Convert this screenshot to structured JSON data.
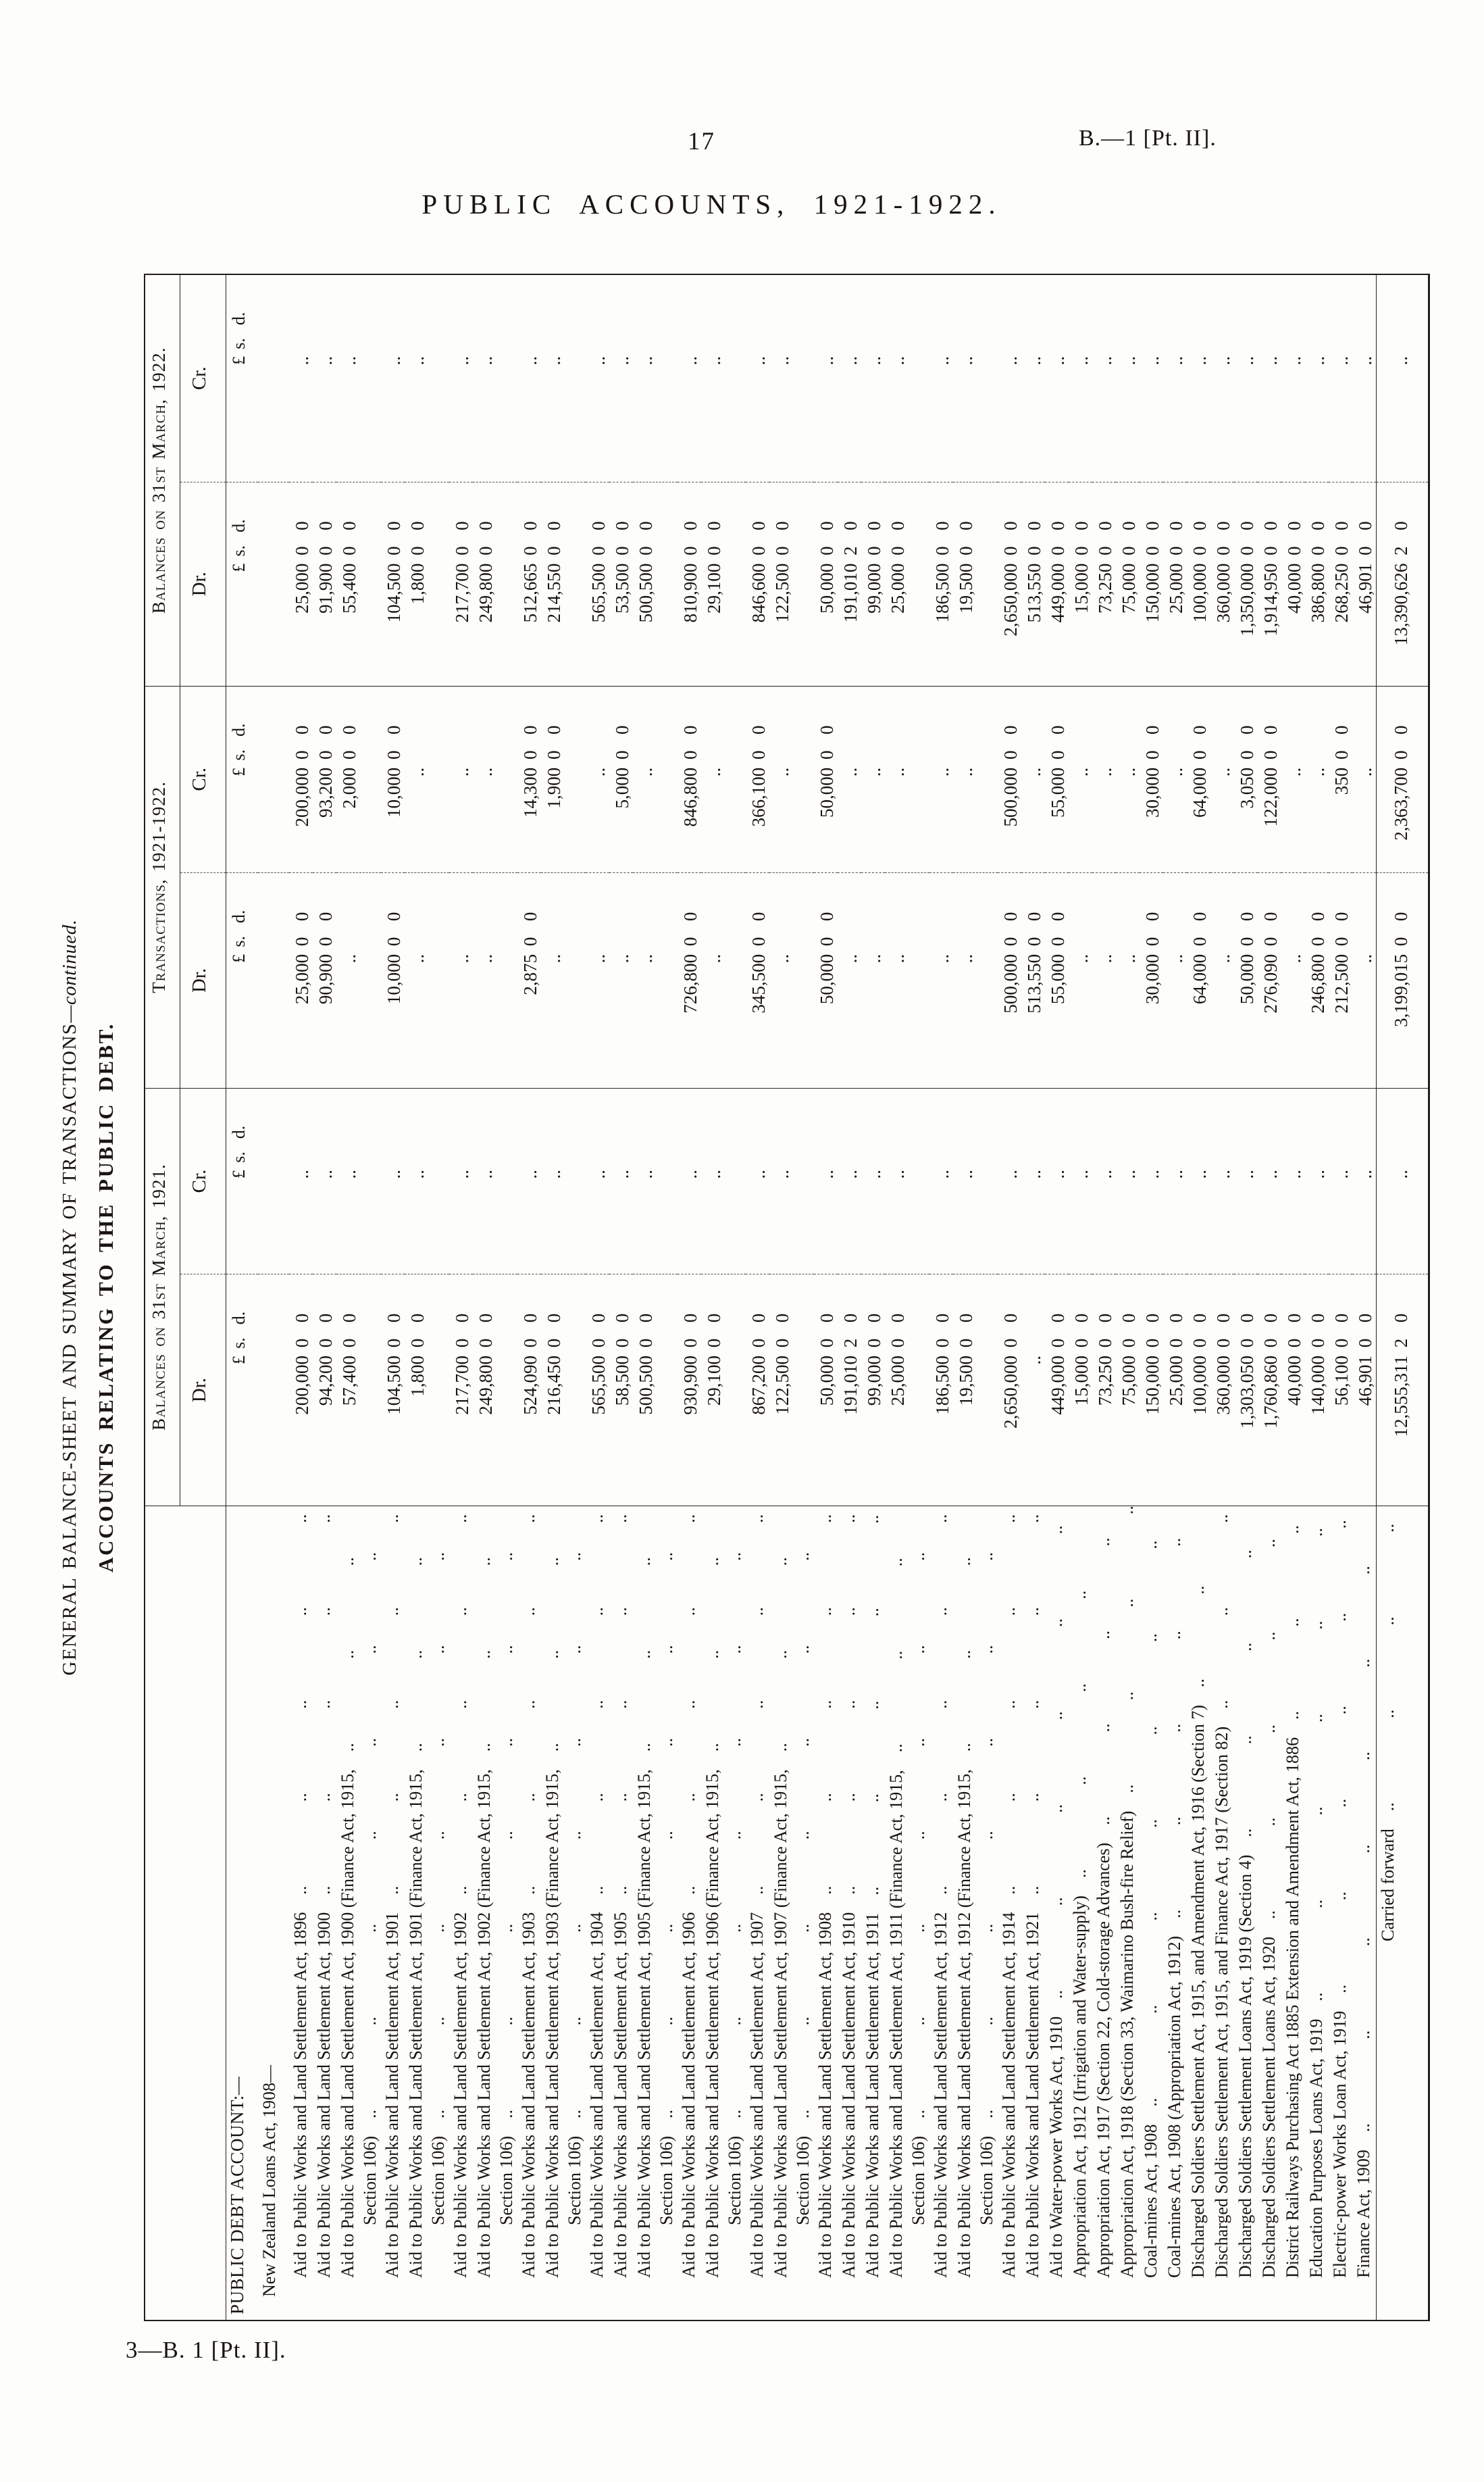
{
  "page": {
    "number": "17",
    "doc_ref": "B.—1 [Pt. II].",
    "title": "PUBLIC ACCOUNTS, 1921-1922.",
    "footer": "3—B. 1 [Pt. II]."
  },
  "table": {
    "caption1_main": "GENERAL BALANCE-SHEET AND SUMMARY OF TRANSACTIONS",
    "caption1_cont": "—continued.",
    "caption2": "ACCOUNTS RELATING TO THE PUBLIC DEBT.",
    "groups": [
      {
        "label": "Balances on 31st March, 1921."
      },
      {
        "label": "Transactions, 1921-1922."
      },
      {
        "label": "Balances on 31st March, 1922."
      }
    ],
    "dr_label": "Dr.",
    "cr_label": "Cr.",
    "pound_sign": "£",
    "s_label": "s.",
    "d_label": "d.",
    "empty_marker": "..",
    "section_heading": "PUBLIC DEBT ACCOUNT:—",
    "subsection_heading": "New Zealand Loans Act, 1908—",
    "rows": [
      {
        "name": "Aid to Public Works and Land Settlement Act, 1896",
        "b21dr": [
          "200,000",
          "0",
          "0"
        ],
        "b21cr": null,
        "trdr": [
          "25,000",
          "0",
          "0"
        ],
        "trcr": [
          "200,000",
          "0",
          "0"
        ],
        "b22dr": [
          "25,000",
          "0",
          "0"
        ],
        "b22cr": null
      },
      {
        "name": "Aid to Public Works and Land Settlement Act, 1900",
        "b21dr": [
          "94,200",
          "0",
          "0"
        ],
        "b21cr": null,
        "trdr": [
          "90,900",
          "0",
          "0"
        ],
        "trcr": [
          "93,200",
          "0",
          "0"
        ],
        "b22dr": [
          "91,900",
          "0",
          "0"
        ],
        "b22cr": null
      },
      {
        "name": "Aid to Public Works and Land Settlement Act, 1900 (Finance Act, 1915,",
        "name2": "Section 106)",
        "b21dr": [
          "57,400",
          "0",
          "0"
        ],
        "b21cr": null,
        "trdr": null,
        "trcr": [
          "2,000",
          "0",
          "0"
        ],
        "b22dr": [
          "55,400",
          "0",
          "0"
        ],
        "b22cr": null
      },
      {
        "name": "Aid to Public Works and Land Settlement Act, 1901",
        "b21dr": [
          "104,500",
          "0",
          "0"
        ],
        "b21cr": null,
        "trdr": [
          "10,000",
          "0",
          "0"
        ],
        "trcr": [
          "10,000",
          "0",
          "0"
        ],
        "b22dr": [
          "104,500",
          "0",
          "0"
        ],
        "b22cr": null
      },
      {
        "name": "Aid to Public Works and Land Settlement Act, 1901 (Finance Act, 1915,",
        "name2": "Section 106)",
        "b21dr": [
          "1,800",
          "0",
          "0"
        ],
        "b21cr": null,
        "trdr": null,
        "trcr": null,
        "b22dr": [
          "1,800",
          "0",
          "0"
        ],
        "b22cr": null
      },
      {
        "name": "Aid to Public Works and Land Settlement Act, 1902",
        "b21dr": [
          "217,700",
          "0",
          "0"
        ],
        "b21cr": null,
        "trdr": null,
        "trcr": null,
        "b22dr": [
          "217,700",
          "0",
          "0"
        ],
        "b22cr": null
      },
      {
        "name": "Aid to Public Works and Land Settlement Act, 1902 (Finance Act, 1915,",
        "name2": "Section 106)",
        "b21dr": [
          "249,800",
          "0",
          "0"
        ],
        "b21cr": null,
        "trdr": null,
        "trcr": null,
        "b22dr": [
          "249,800",
          "0",
          "0"
        ],
        "b22cr": null
      },
      {
        "name": "Aid to Public Works and Land Settlement Act, 1903",
        "b21dr": [
          "524,090",
          "0",
          "0"
        ],
        "b21cr": null,
        "trdr": [
          "2,875",
          "0",
          "0"
        ],
        "trcr": [
          "14,300",
          "0",
          "0"
        ],
        "b22dr": [
          "512,665",
          "0",
          "0"
        ],
        "b22cr": null
      },
      {
        "name": "Aid to Public Works and Land Settlement Act, 1903 (Finance Act, 1915,",
        "name2": "Section 106)",
        "b21dr": [
          "216,450",
          "0",
          "0"
        ],
        "b21cr": null,
        "trdr": null,
        "trcr": [
          "1,900",
          "0",
          "0"
        ],
        "b22dr": [
          "214,550",
          "0",
          "0"
        ],
        "b22cr": null
      },
      {
        "name": "Aid to Public Works and Land Settlement Act, 1904",
        "b21dr": [
          "565,500",
          "0",
          "0"
        ],
        "b21cr": null,
        "trdr": null,
        "trcr": null,
        "b22dr": [
          "565,500",
          "0",
          "0"
        ],
        "b22cr": null
      },
      {
        "name": "Aid to Public Works and Land Settlement Act, 1905",
        "b21dr": [
          "58,500",
          "0",
          "0"
        ],
        "b21cr": null,
        "trdr": null,
        "trcr": [
          "5,000",
          "0",
          "0"
        ],
        "b22dr": [
          "53,500",
          "0",
          "0"
        ],
        "b22cr": null
      },
      {
        "name": "Aid to Public Works and Land Settlement Act, 1905 (Finance Act, 1915,",
        "name2": "Section 106)",
        "b21dr": [
          "500,500",
          "0",
          "0"
        ],
        "b21cr": null,
        "trdr": null,
        "trcr": null,
        "b22dr": [
          "500,500",
          "0",
          "0"
        ],
        "b22cr": null
      },
      {
        "name": "Aid to Public Works and Land Settlement Act, 1906",
        "b21dr": [
          "930,900",
          "0",
          "0"
        ],
        "b21cr": null,
        "trdr": [
          "726,800",
          "0",
          "0"
        ],
        "trcr": [
          "846,800",
          "0",
          "0"
        ],
        "b22dr": [
          "810,900",
          "0",
          "0"
        ],
        "b22cr": null
      },
      {
        "name": "Aid to Public Works and Land Settlement Act, 1906 (Finance Act, 1915,",
        "name2": "Section 106)",
        "b21dr": [
          "29,100",
          "0",
          "0"
        ],
        "b21cr": null,
        "trdr": null,
        "trcr": null,
        "b22dr": [
          "29,100",
          "0",
          "0"
        ],
        "b22cr": null
      },
      {
        "name": "Aid to Public Works and Land Settlement Act, 1907",
        "b21dr": [
          "867,200",
          "0",
          "0"
        ],
        "b21cr": null,
        "trdr": [
          "345,500",
          "0",
          "0"
        ],
        "trcr": [
          "366,100",
          "0",
          "0"
        ],
        "b22dr": [
          "846,600",
          "0",
          "0"
        ],
        "b22cr": null
      },
      {
        "name": "Aid to Public Works and Land Settlement Act, 1907 (Finance Act, 1915,",
        "name2": "Section 106)",
        "b21dr": [
          "122,500",
          "0",
          "0"
        ],
        "b21cr": null,
        "trdr": null,
        "trcr": null,
        "b22dr": [
          "122,500",
          "0",
          "0"
        ],
        "b22cr": null
      },
      {
        "name": "Aid to Public Works and Land Settlement Act, 1908",
        "b21dr": [
          "50,000",
          "0",
          "0"
        ],
        "b21cr": null,
        "trdr": [
          "50,000",
          "0",
          "0"
        ],
        "trcr": [
          "50,000",
          "0",
          "0"
        ],
        "b22dr": [
          "50,000",
          "0",
          "0"
        ],
        "b22cr": null
      },
      {
        "name": "Aid to Public Works and Land Settlement Act, 1910",
        "b21dr": [
          "191,010",
          "2",
          "0"
        ],
        "b21cr": null,
        "trdr": null,
        "trcr": null,
        "b22dr": [
          "191,010",
          "2",
          "0"
        ],
        "b22cr": null
      },
      {
        "name": "Aid to Public Works and Land Settlement Act, 1911",
        "b21dr": [
          "99,000",
          "0",
          "0"
        ],
        "b21cr": null,
        "trdr": null,
        "trcr": null,
        "b22dr": [
          "99,000",
          "0",
          "0"
        ],
        "b22cr": null
      },
      {
        "name": "Aid to Public Works and Land Settlement Act, 1911 (Finance Act, 1915,",
        "name2": "Section 106)",
        "b21dr": [
          "25,000",
          "0",
          "0"
        ],
        "b21cr": null,
        "trdr": null,
        "trcr": null,
        "b22dr": [
          "25,000",
          "0",
          "0"
        ],
        "b22cr": null
      },
      {
        "name": "Aid to Public Works and Land Settlement Act, 1912",
        "b21dr": [
          "186,500",
          "0",
          "0"
        ],
        "b21cr": null,
        "trdr": null,
        "trcr": null,
        "b22dr": [
          "186,500",
          "0",
          "0"
        ],
        "b22cr": null
      },
      {
        "name": "Aid to Public Works and Land Settlement Act, 1912 (Finance Act, 1915,",
        "name2": "Section 106)",
        "b21dr": [
          "19,500",
          "0",
          "0"
        ],
        "b21cr": null,
        "trdr": null,
        "trcr": null,
        "b22dr": [
          "19,500",
          "0",
          "0"
        ],
        "b22cr": null
      },
      {
        "name": "Aid to Public Works and Land Settlement Act, 1914",
        "b21dr": [
          "2,650,000",
          "0",
          "0"
        ],
        "b21cr": null,
        "trdr": [
          "500,000",
          "0",
          "0"
        ],
        "trcr": [
          "500,000",
          "0",
          "0"
        ],
        "b22dr": [
          "2,650,000",
          "0",
          "0"
        ],
        "b22cr": null
      },
      {
        "name": "Aid to Public Works and Land Settlement Act, 1921",
        "b21dr": null,
        "b21cr": null,
        "trdr": [
          "513,550",
          "0",
          "0"
        ],
        "trcr": null,
        "b22dr": [
          "513,550",
          "0",
          "0"
        ],
        "b22cr": null
      },
      {
        "name": "Aid to Water-power Works Act, 1910",
        "b21dr": [
          "449,000",
          "0",
          "0"
        ],
        "b21cr": null,
        "trdr": [
          "55,000",
          "0",
          "0"
        ],
        "trcr": [
          "55,000",
          "0",
          "0"
        ],
        "b22dr": [
          "449,000",
          "0",
          "0"
        ],
        "b22cr": null
      },
      {
        "name": "Appropriation Act, 1912 (Irrigation and Water-supply)",
        "b21dr": [
          "15,000",
          "0",
          "0"
        ],
        "b21cr": null,
        "trdr": null,
        "trcr": null,
        "b22dr": [
          "15,000",
          "0",
          "0"
        ],
        "b22cr": null
      },
      {
        "name": "Appropriation Act, 1917 (Section 22, Cold-storage Advances)",
        "b21dr": [
          "73,250",
          "0",
          "0"
        ],
        "b21cr": null,
        "trdr": null,
        "trcr": null,
        "b22dr": [
          "73,250",
          "0",
          "0"
        ],
        "b22cr": null
      },
      {
        "name": "Appropriation Act, 1918 (Section 33, Waimarino Bush-fire Relief)",
        "b21dr": [
          "75,000",
          "0",
          "0"
        ],
        "b21cr": null,
        "trdr": null,
        "trcr": null,
        "b22dr": [
          "75,000",
          "0",
          "0"
        ],
        "b22cr": null
      },
      {
        "name": "Coal-mines Act, 1908",
        "b21dr": [
          "150,000",
          "0",
          "0"
        ],
        "b21cr": null,
        "trdr": [
          "30,000",
          "0",
          "0"
        ],
        "trcr": [
          "30,000",
          "0",
          "0"
        ],
        "b22dr": [
          "150,000",
          "0",
          "0"
        ],
        "b22cr": null
      },
      {
        "name": "Coal-mines Act, 1908 (Appropriation Act, 1912)",
        "b21dr": [
          "25,000",
          "0",
          "0"
        ],
        "b21cr": null,
        "trdr": null,
        "trcr": null,
        "b22dr": [
          "25,000",
          "0",
          "0"
        ],
        "b22cr": null
      },
      {
        "name": "Discharged Soldiers Settlement Act, 1915, and Amendment Act, 1916 (Section 7)",
        "b21dr": [
          "100,000",
          "0",
          "0"
        ],
        "b21cr": null,
        "trdr": [
          "64,000",
          "0",
          "0"
        ],
        "trcr": [
          "64,000",
          "0",
          "0"
        ],
        "b22dr": [
          "100,000",
          "0",
          "0"
        ],
        "b22cr": null
      },
      {
        "name": "Discharged Soldiers Settlement Act, 1915, and Finance Act, 1917 (Section 82)",
        "b21dr": [
          "360,000",
          "0",
          "0"
        ],
        "b21cr": null,
        "trdr": null,
        "trcr": null,
        "b22dr": [
          "360,000",
          "0",
          "0"
        ],
        "b22cr": null
      },
      {
        "name": "Discharged Soldiers Settlement Loans Act, 1919 (Section 4)",
        "b21dr": [
          "1,303,050",
          "0",
          "0"
        ],
        "b21cr": null,
        "trdr": [
          "50,000",
          "0",
          "0"
        ],
        "trcr": [
          "3,050",
          "0",
          "0"
        ],
        "b22dr": [
          "1,350,000",
          "0",
          "0"
        ],
        "b22cr": null
      },
      {
        "name": "Discharged Soldiers Settlement Loans Act, 1920",
        "b21dr": [
          "1,760,860",
          "0",
          "0"
        ],
        "b21cr": null,
        "trdr": [
          "276,090",
          "0",
          "0"
        ],
        "trcr": [
          "122,000",
          "0",
          "0"
        ],
        "b22dr": [
          "1,914,950",
          "0",
          "0"
        ],
        "b22cr": null
      },
      {
        "name": "District Railways Purchasing Act 1885 Extension and Amendment Act, 1886",
        "b21dr": [
          "40,000",
          "0",
          "0"
        ],
        "b21cr": null,
        "trdr": null,
        "trcr": null,
        "b22dr": [
          "40,000",
          "0",
          "0"
        ],
        "b22cr": null
      },
      {
        "name": "Education Purposes Loans Act, 1919",
        "b21dr": [
          "140,000",
          "0",
          "0"
        ],
        "b21cr": null,
        "trdr": [
          "246,800",
          "0",
          "0"
        ],
        "trcr": null,
        "b22dr": [
          "386,800",
          "0",
          "0"
        ],
        "b22cr": null
      },
      {
        "name": "Electric-power Works Loan Act, 1919",
        "b21dr": [
          "56,100",
          "0",
          "0"
        ],
        "b21cr": null,
        "trdr": [
          "212,500",
          "0",
          "0"
        ],
        "trcr": [
          "350",
          "0",
          "0"
        ],
        "b22dr": [
          "268,250",
          "0",
          "0"
        ],
        "b22cr": null
      },
      {
        "name": "Finance Act, 1909",
        "b21dr": [
          "46,901",
          "0",
          "0"
        ],
        "b21cr": null,
        "trdr": null,
        "trcr": null,
        "b22dr": [
          "46,901",
          "0",
          "0"
        ],
        "b22cr": null
      }
    ],
    "total_row": {
      "label": "Carried forward",
      "b21dr": [
        "12,555,311",
        "2",
        "0"
      ],
      "b21cr": null,
      "trdr": [
        "3,199,015",
        "0",
        "0"
      ],
      "trcr": [
        "2,363,700",
        "0",
        "0"
      ],
      "b22dr": [
        "13,390,626",
        "2",
        "0"
      ],
      "b22cr": null
    }
  }
}
